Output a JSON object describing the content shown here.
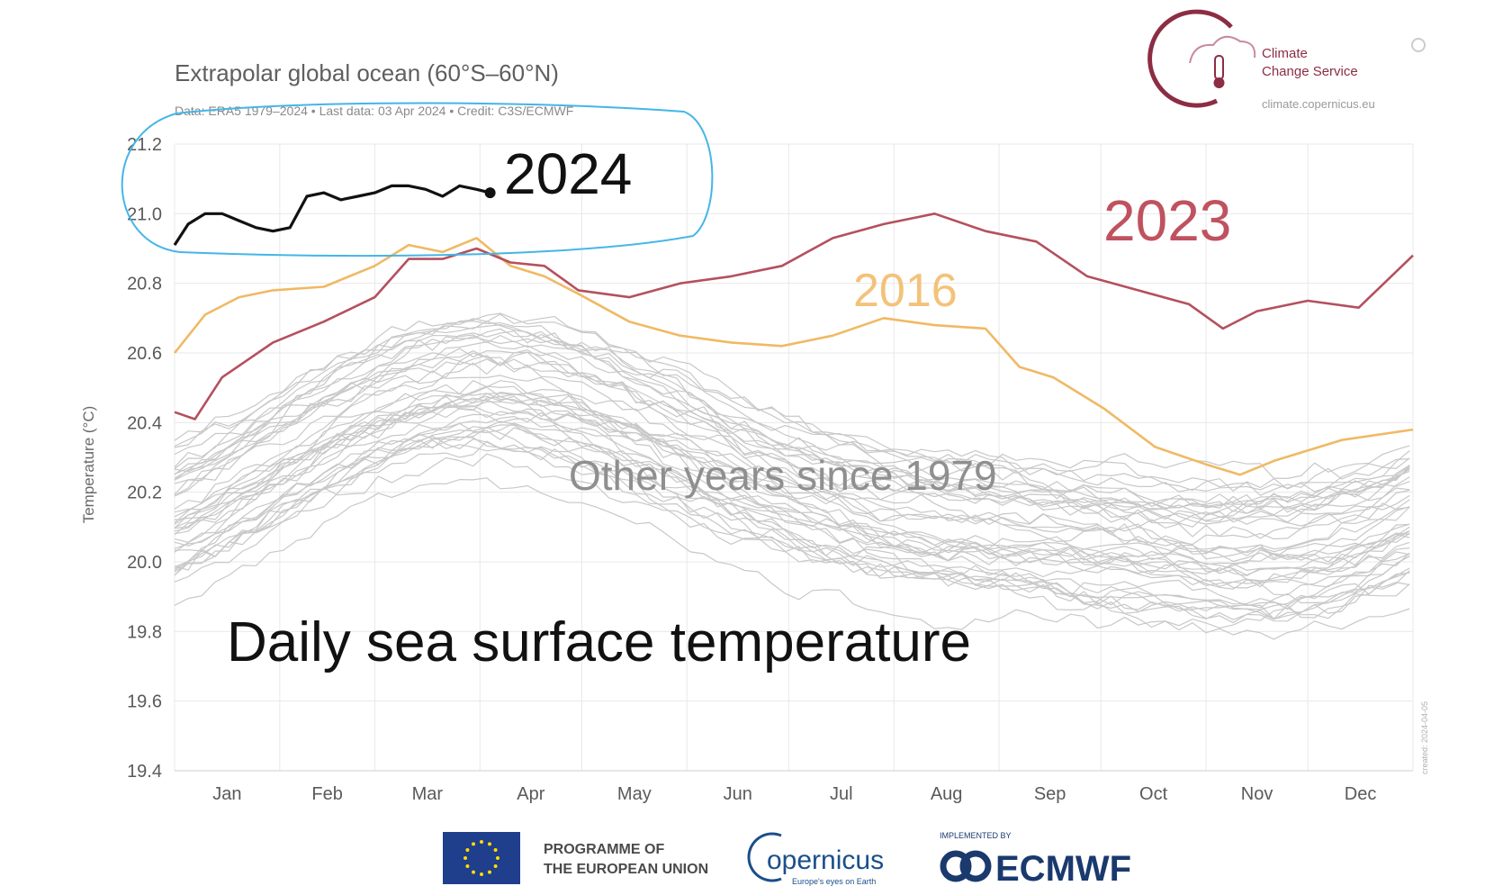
{
  "header": {
    "title": "Extrapolar global ocean (60°S–60°N)",
    "subtitle": "Data: ERA5 1979–2024 • Last data: 03 Apr 2024 • Credit: C3S/ECMWF"
  },
  "logo": {
    "line1": "Climate",
    "line2": "Change Service",
    "url": "climate.copernicus.eu",
    "color": "#8c2d44"
  },
  "side_label": "created: 2024-04-05",
  "annotations": {
    "y2024": "2024",
    "y2023": "2023",
    "y2016": "2016",
    "others": "Other years since 1979",
    "big": "Daily sea surface temperature"
  },
  "footer": {
    "eu_line1": "PROGRAMME OF",
    "eu_line2": "THE EUROPEAN UNION",
    "copernicus": "opernicus",
    "copernicus_sub": "Europe's eyes on Earth",
    "implemented": "IMPLEMENTED BY",
    "ecmwf": "ECMWF"
  },
  "colors": {
    "c2024": "#111111",
    "c2023": "#b5505e",
    "c2016": "#f0b964",
    "others": "#c8c8c8",
    "grid": "#e8e8e8",
    "highlight": "#44b6e6"
  },
  "chart_data": {
    "type": "line",
    "ylabel": "Temperature (°C)",
    "ylim": [
      19.4,
      21.2
    ],
    "yticks": [
      "21.2",
      "21.0",
      "20.8",
      "20.6",
      "20.4",
      "20.2",
      "20.0",
      "19.8",
      "19.6",
      "19.4"
    ],
    "xlim": [
      1,
      366
    ],
    "months": [
      "Jan",
      "Feb",
      "Mar",
      "Apr",
      "May",
      "Jun",
      "Jul",
      "Aug",
      "Sep",
      "Oct",
      "Nov",
      "Dec"
    ],
    "grid": true,
    "series": [
      {
        "name": "2024",
        "color": "#111111",
        "x": [
          1,
          5,
          10,
          15,
          20,
          25,
          30,
          35,
          40,
          45,
          50,
          55,
          60,
          65,
          70,
          75,
          80,
          85,
          90,
          94
        ],
        "values": [
          20.91,
          20.97,
          21.0,
          21.0,
          20.98,
          20.96,
          20.95,
          20.96,
          21.05,
          21.06,
          21.04,
          21.05,
          21.06,
          21.08,
          21.08,
          21.07,
          21.05,
          21.08,
          21.07,
          21.06
        ]
      },
      {
        "name": "2023",
        "color": "#b5505e",
        "x": [
          1,
          7,
          15,
          30,
          45,
          60,
          70,
          80,
          90,
          100,
          110,
          120,
          135,
          150,
          165,
          180,
          195,
          210,
          225,
          240,
          255,
          270,
          285,
          300,
          310,
          320,
          335,
          350,
          366
        ],
        "values": [
          20.43,
          20.41,
          20.53,
          20.63,
          20.69,
          20.76,
          20.87,
          20.87,
          20.9,
          20.86,
          20.85,
          20.78,
          20.76,
          20.8,
          20.82,
          20.85,
          20.93,
          20.97,
          21.0,
          20.95,
          20.92,
          20.82,
          20.78,
          20.74,
          20.67,
          20.72,
          20.75,
          20.73,
          20.88
        ]
      },
      {
        "name": "2016",
        "color": "#f0b964",
        "x": [
          1,
          10,
          20,
          30,
          45,
          60,
          70,
          80,
          90,
          100,
          110,
          120,
          135,
          150,
          165,
          180,
          195,
          210,
          225,
          240,
          250,
          260,
          275,
          290,
          305,
          315,
          325,
          345,
          366
        ],
        "values": [
          20.6,
          20.71,
          20.76,
          20.78,
          20.79,
          20.85,
          20.91,
          20.89,
          20.93,
          20.85,
          20.82,
          20.77,
          20.69,
          20.65,
          20.63,
          20.62,
          20.65,
          20.7,
          20.68,
          20.67,
          20.56,
          20.53,
          20.44,
          20.33,
          20.28,
          20.25,
          20.29,
          20.35,
          20.38
        ]
      }
    ]
  }
}
